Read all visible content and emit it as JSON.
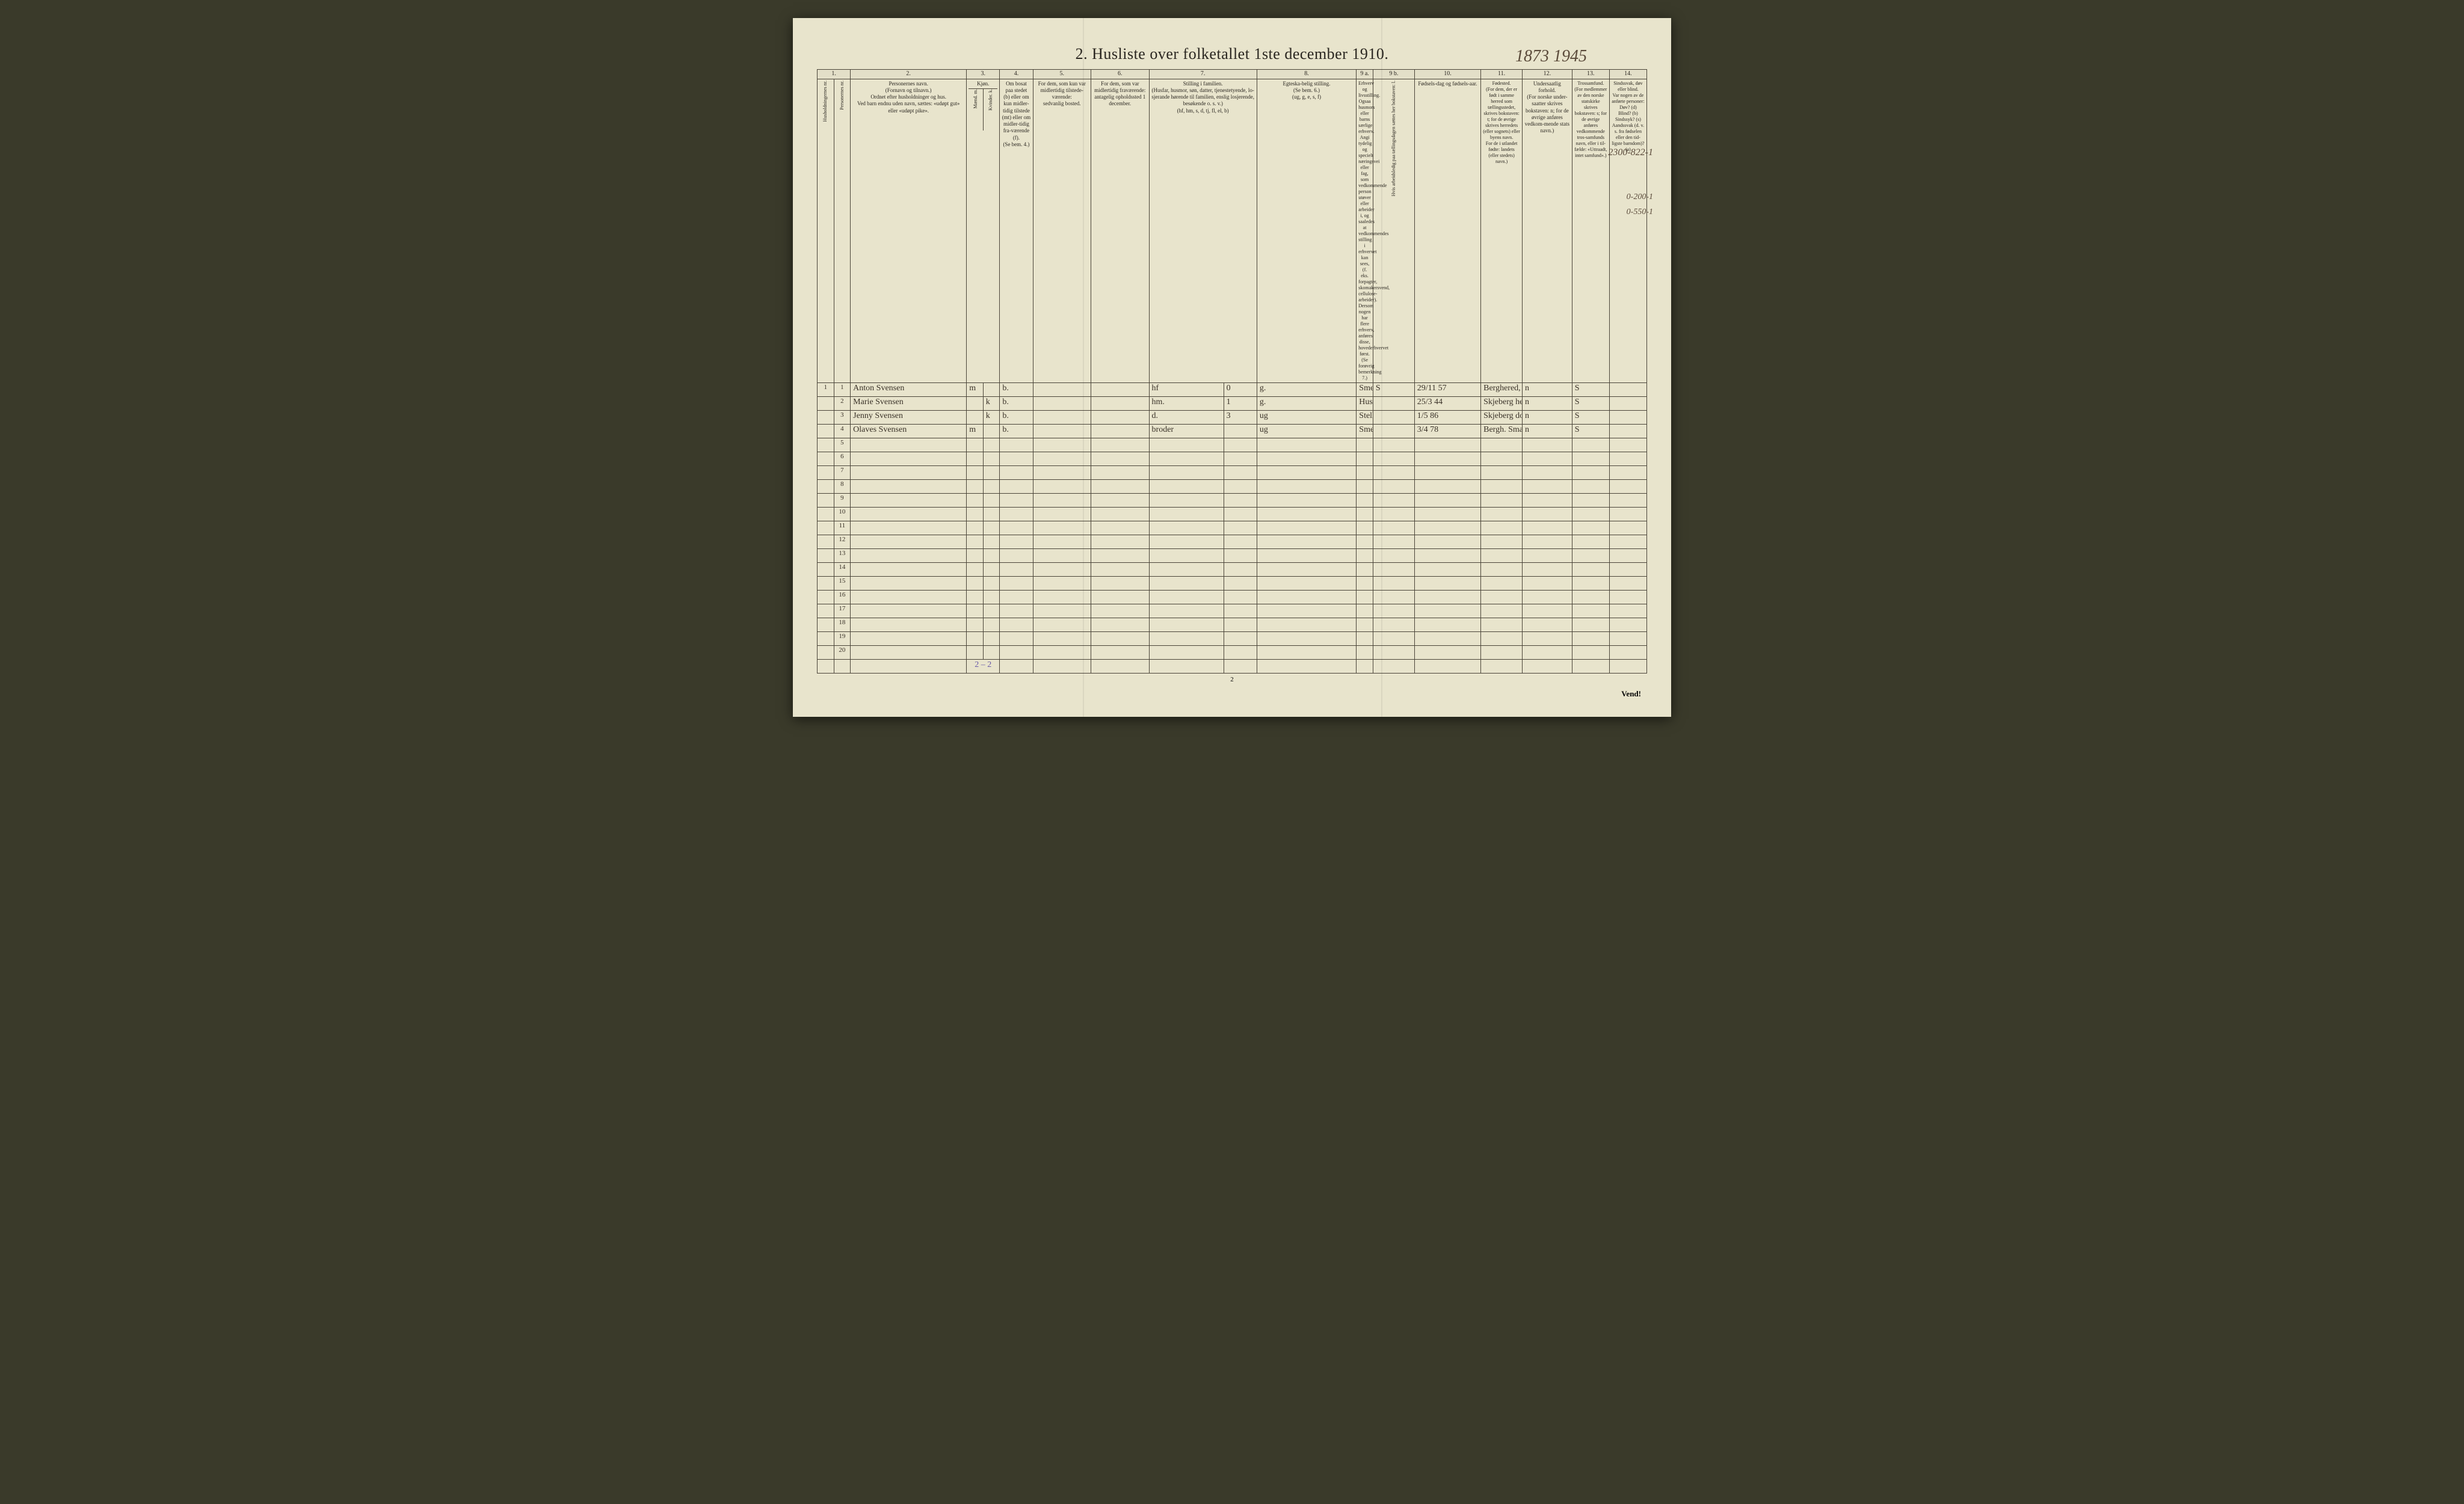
{
  "title": "2.  Husliste over folketallet 1ste december 1910.",
  "margin_notes": {
    "year": "1873 1945",
    "right1": "2300-822-1",
    "right2": "0-200-1",
    "right3": "0-550-1"
  },
  "column_numbers": [
    "1.",
    "2.",
    "3.",
    "4.",
    "5.",
    "6.",
    "7.",
    "8.",
    "9 a.",
    "9 b.",
    "10.",
    "11.",
    "12.",
    "13.",
    "14."
  ],
  "column_widths_pct": [
    2,
    2,
    14,
    2,
    2,
    4,
    7,
    7,
    9,
    4,
    12,
    2,
    5,
    8,
    5,
    6,
    4.5
  ],
  "column_headers": {
    "c1": "Husholdningernes nr.",
    "c1b": "Personernes nr.",
    "c2": "Personernes navn.\n(Fornavn og tilnavn.)\nOrdnet efter husholdninger og hus.\nVed barn endnu uden navn, sættes: «udøpt gut» eller «udøpt pike».",
    "c3": "Kjøn.",
    "c3a": "Mænd.  m.",
    "c3b": "Kvinder.  k.",
    "c4": "Om bosat paa stedet (b) eller om kun midler-tidig tilstede (mt) eller om midler-tidig fra-værende (f).\n(Se bem. 4.)",
    "c5": "For dem, som kun var midlertidig tilstede-værende:\nsedvanlig bosted.",
    "c6": "For dem, som var midlertidig fraværende:\nantagelig opholdssted 1 december.",
    "c7": "Stilling i familien.\n(Husfar, husmor, søn, datter, tjenestetyende, lo-sjerande hørende til familien, enslig losjerende, besøkende o. s. v.)\n(hf, hm, s, d, tj, fl, el, b)",
    "c8": "Egteska-belig stilling.\n(Se bem. 6.)\n(ug, g, e, s, f)",
    "c9a": "Erhverv og livsstilling.\nOgsaa husmors eller barns særlige erhverv.\nAngi tydelig og specielt næringsvei eller fag, som vedkommende person utøver eller arbeider i, og saaledes at vedkommendes stilling i erhvervet kan sees, (f. eks. forpagter, skomakersvend, cellulose-arbeider). Dersom nogen har flere erhverv, anføres disse, hovederhvervet først.\n(Se forøvrig bemerkning 7.)",
    "c9b": "Hvis arbeidsledig paa tællingsdagen sættes her bokstaven: l.",
    "c10": "Fødsels-dag og fødsels-aar.",
    "c11": "Fødested.\n(For dem, der er født i samme herred som tællingsstedet, skrives bokstaven: t; for de øvrige skrives herredets (eller sognets) eller byens navn.\nFor de i utlandet fødte: landets (eller stedets) navn.)",
    "c12": "Undersaatlig forhold.\n(For norske under-saatter skrives bokstaven: n; for de øvrige anføres vedkom-mende stats navn.)",
    "c13": "Trossamfund.\n(For medlemmer av den norske statskirke skrives bokstaven: s; for de øvrige anføres vedkommende tros-samfunds navn, eller i til-fælde: «Uttraadt, intet samfund».)",
    "c14": "Sindssvak, døv eller blind.\nVar nogen av de anførte personer:\nDøv?       (d)\nBlind?     (b)\nSindssyk?  (s)\nAandssvak (d. v. s. fra fødselen eller den tid-ligste barndom)?  (a)"
  },
  "rows": [
    {
      "hnr": "1",
      "pnr": "",
      "name": "Anton Svensen",
      "m": "m",
      "k": "",
      "bosat": "b.",
      "c5": "",
      "c6": "",
      "stilling": "hf",
      "annot": "0",
      "egte": "g.",
      "erhverv": "Smed, snekker, jordbr.",
      "l": "S",
      "fdag": "29/11 57",
      "fsted": "Berghered, Smaal.",
      "under": "n",
      "tros": "S",
      "c14": ""
    },
    {
      "hnr": "",
      "pnr": "2",
      "name": "Marie Svensen",
      "m": "",
      "k": "k",
      "bosat": "b.",
      "c5": "",
      "c6": "",
      "stilling": "hm.",
      "annot": "1",
      "egte": "g.",
      "erhverv": "Husstel",
      "l": "",
      "fdag": "25/3 44",
      "fsted": "Skjeberg hered",
      "under": "n",
      "tros": "S",
      "c14": ""
    },
    {
      "hnr": "",
      "pnr": "3",
      "name": "Jenny Svensen",
      "m": "",
      "k": "k",
      "bosat": "b.",
      "c5": "",
      "c6": "",
      "stilling": "d.",
      "annot": "3",
      "egte": "ug",
      "erhverv": "Steller i huset og syning",
      "l": "",
      "fdag": "1/5 86",
      "fsted": "Skjeberg do.",
      "under": "n",
      "tros": "S",
      "c14": ""
    },
    {
      "hnr": "",
      "pnr": "4",
      "name": "Olaves Svensen",
      "m": "m",
      "k": "",
      "bosat": "b.",
      "c5": "",
      "c6": "",
      "stilling": "broder",
      "annot": "",
      "egte": "ug",
      "erhverv": "Smed & snekkerarbeide a.",
      "l": "",
      "fdag": "3/4 78",
      "fsted": "Bergh. Smaal.",
      "under": "n",
      "tros": "S",
      "c14": ""
    }
  ],
  "empty_row_count": 16,
  "footer_tally": "2 – 2",
  "page_number_bottom": "2",
  "vend": "Vend!",
  "colors": {
    "paper": "#e8e4cc",
    "ink": "#2a2620",
    "handwriting": "#3a3228",
    "purple_note": "#6a5aa8",
    "border": "#4a4438",
    "background": "#3a3a2a"
  },
  "fonts": {
    "title_size_pt": 20,
    "header_size_pt": 7,
    "body_size_pt": 11
  }
}
